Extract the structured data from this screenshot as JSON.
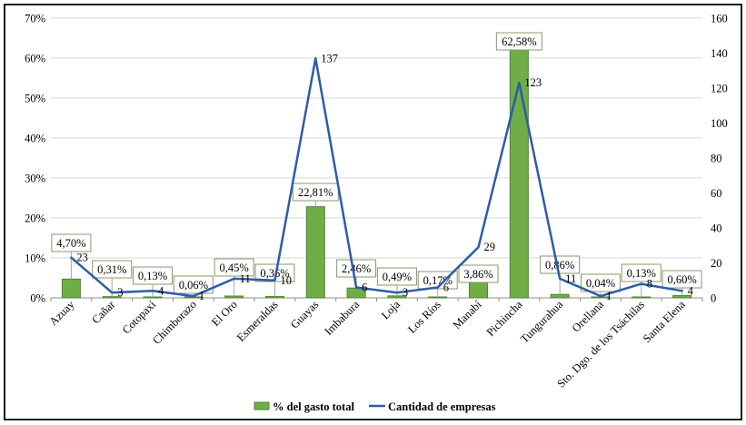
{
  "chart_data": {
    "type": "combo-bar-line",
    "title": "",
    "categories": [
      "Azuay",
      "Cañar",
      "Cotopaxi",
      "Chimborazo",
      "El Oro",
      "Esmeraldas",
      "Guayas",
      "Imbabura",
      "Loja",
      "Los Ríos",
      "Manabí",
      "Pichincha",
      "Tungurahua",
      "Orellana",
      "Sto. Dgo. de los Tsáchilas",
      "Santa Elena"
    ],
    "series": [
      {
        "name": "% del gasto total",
        "type": "bar",
        "axis": "left",
        "values": [
          4.7,
          0.31,
          0.13,
          0.06,
          0.45,
          0.36,
          22.81,
          2.46,
          0.49,
          0.17,
          3.86,
          62.58,
          0.86,
          0.04,
          0.13,
          0.6
        ],
        "labels": [
          "4,70%",
          "0,31%",
          "0,13%",
          "0,06%",
          "0,45%",
          "0,36%",
          "22,81%",
          "2,46%",
          "0,49%",
          "0,17%",
          "3,86%",
          "62,58%",
          "0,86%",
          "0,04%",
          "0,13%",
          "0,60%"
        ],
        "color": "#70AD47",
        "border_color": "#548235"
      },
      {
        "name": "Cantidad de empresas",
        "type": "line",
        "axis": "right",
        "values": [
          23,
          3,
          4,
          1,
          11,
          10,
          137,
          6,
          3,
          6,
          29,
          123,
          11,
          1,
          8,
          4
        ],
        "labels": [
          "23",
          "3",
          "4",
          "1",
          "11",
          "10",
          "137",
          "6",
          "3",
          "6",
          "29",
          "123",
          "11",
          "1",
          "8",
          "4"
        ],
        "color": "#2E5CA8"
      }
    ],
    "left_axis": {
      "min": 0,
      "max": 70,
      "step": 10,
      "tick_labels": [
        "0%",
        "10%",
        "20%",
        "30%",
        "40%",
        "50%",
        "60%",
        "70%"
      ]
    },
    "right_axis": {
      "min": 0,
      "max": 160,
      "step": 20,
      "tick_labels": [
        "0",
        "20",
        "40",
        "60",
        "80",
        "100",
        "120",
        "140",
        "160"
      ]
    },
    "grid": true,
    "legend_position": "bottom",
    "colors": {
      "gridline": "#D9D9D9",
      "axis_line": "#8C8C8C",
      "label_box_border": "#87986B",
      "label_box_fill": "#FFFFFF",
      "leader_line": "#A6A6A6",
      "frame_border": "#1A1A1A"
    }
  }
}
